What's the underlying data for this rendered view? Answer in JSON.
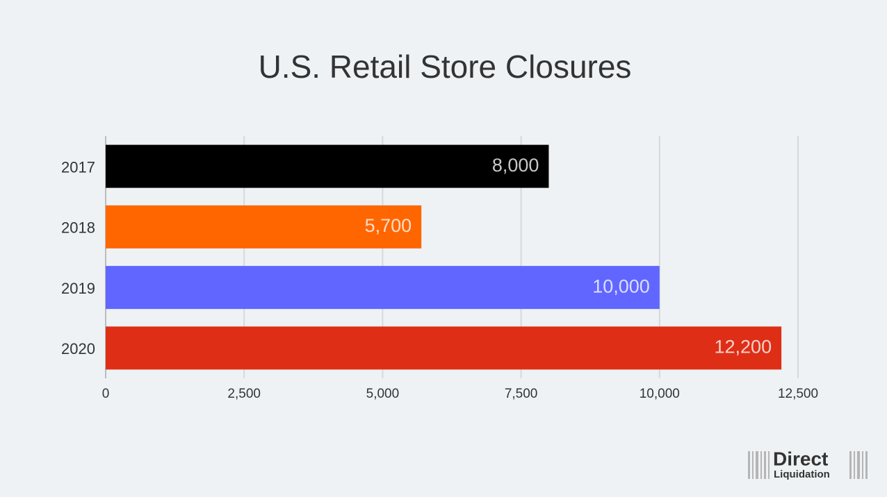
{
  "chart_data": {
    "type": "hbar",
    "title": "U.S. Retail Store Closures",
    "categories": [
      "2017",
      "2018",
      "2019",
      "2020"
    ],
    "values": [
      8000,
      5700,
      10000,
      12200
    ],
    "value_labels": [
      "8,000",
      "5,700",
      "10,000",
      "12,200"
    ],
    "colors": [
      "#000000",
      "#ff6600",
      "#6066ff",
      "#de2f16"
    ],
    "xlim": [
      0,
      12500
    ],
    "xticks": [
      0,
      {
        "value": 2500,
        "label": "2,500"
      },
      {
        "value": 5000,
        "label": "5,000"
      },
      {
        "value": 7500,
        "label": "7,500"
      },
      {
        "value": 10000,
        "label": "10,000"
      },
      {
        "value": 12500,
        "label": "12,500"
      }
    ],
    "grid": true
  },
  "logo": {
    "line1": "Direct",
    "line2": "Liquidation"
  }
}
